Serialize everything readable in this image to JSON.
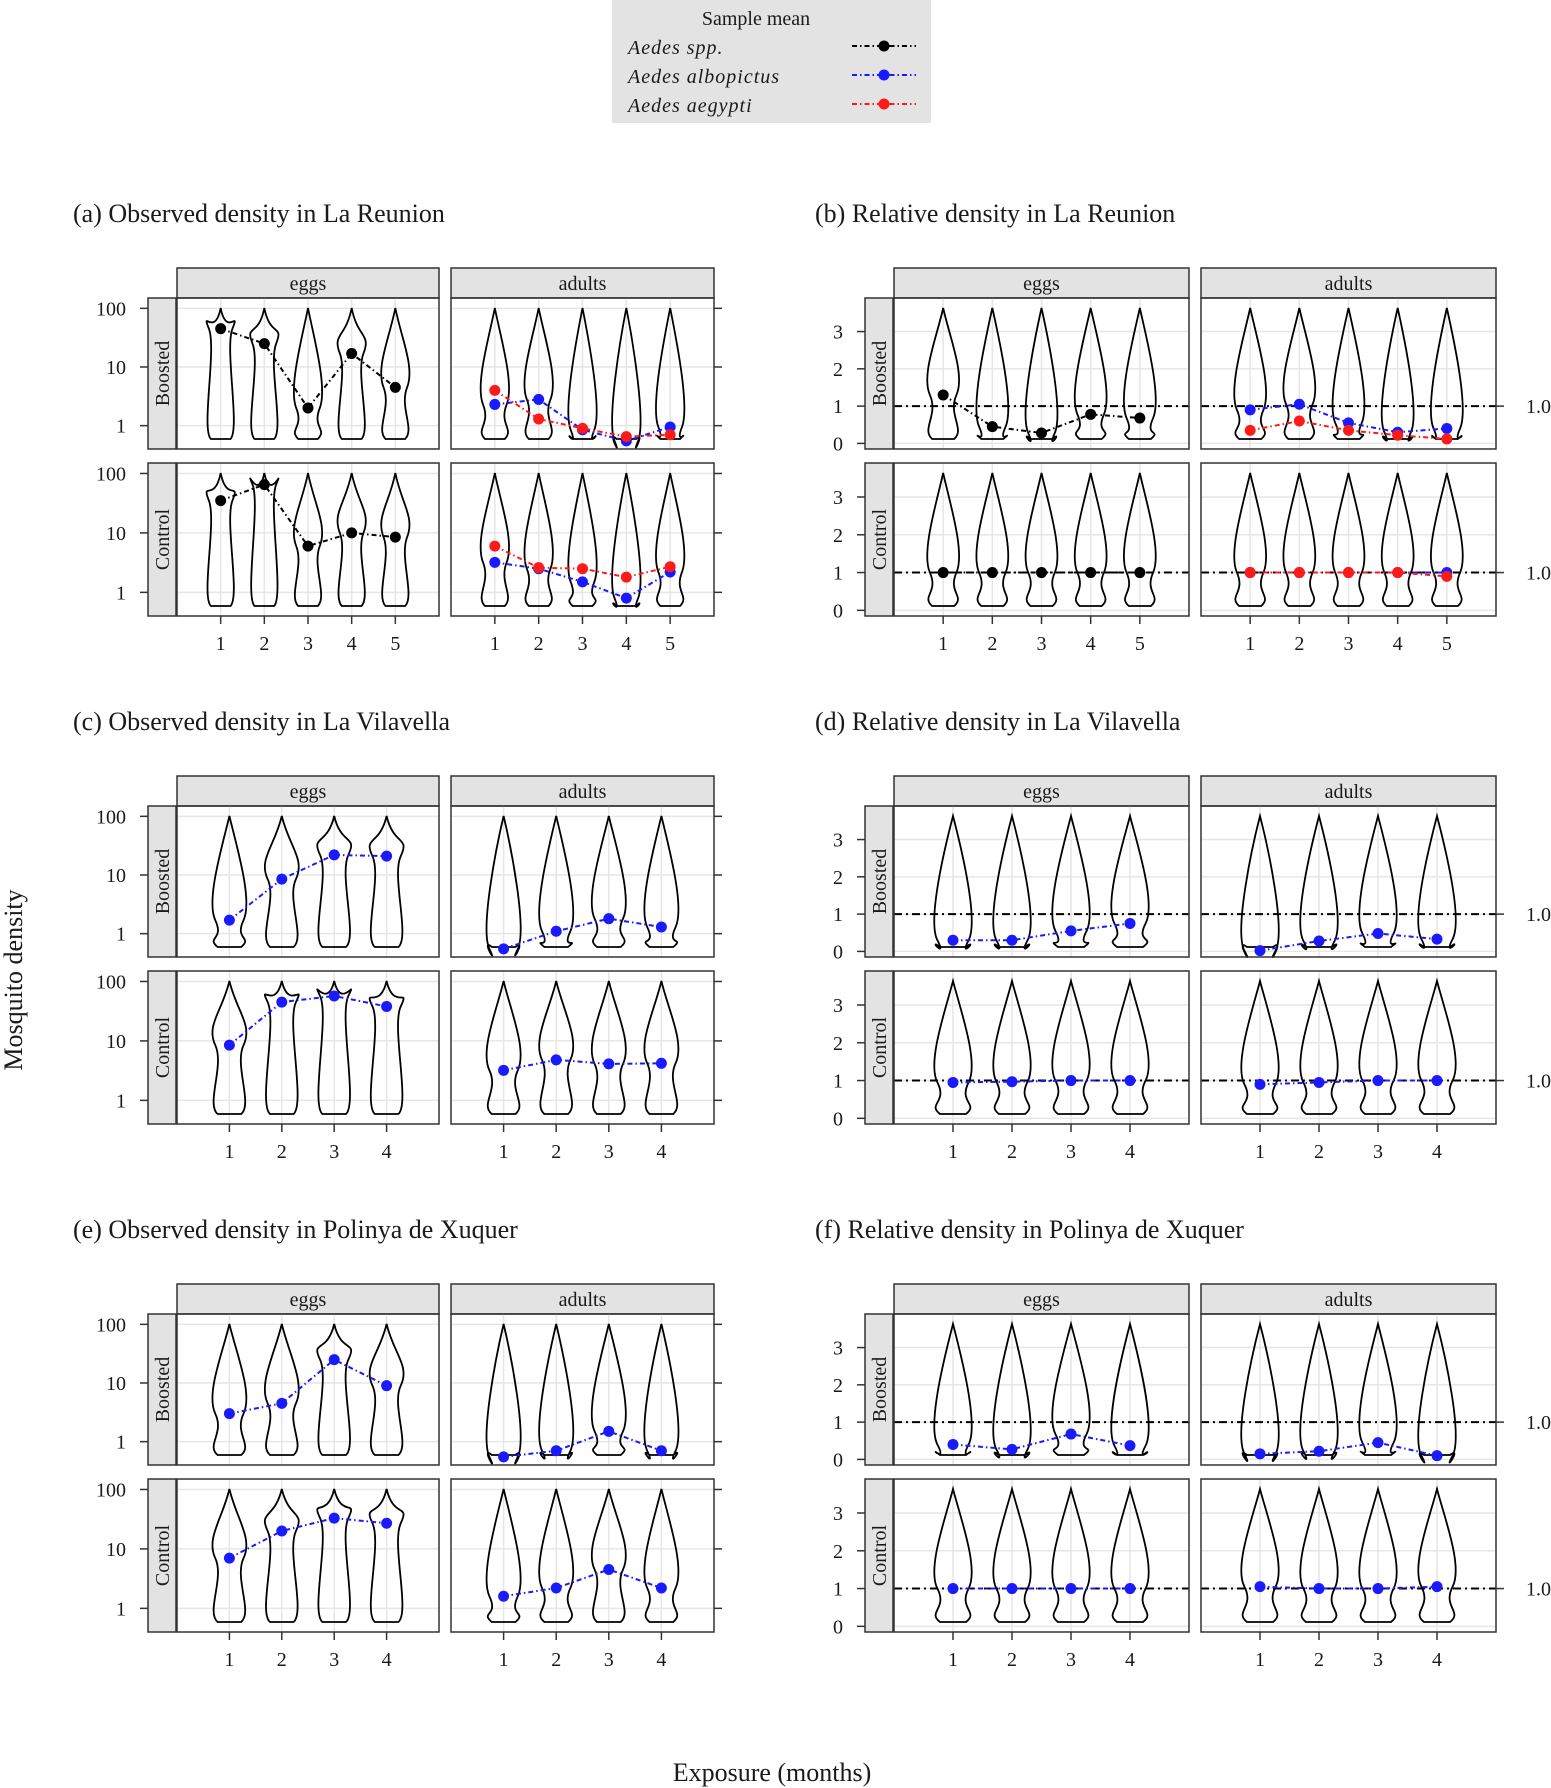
{
  "figure": {
    "y_axis_title": "Mosquito density",
    "x_axis_title": "Exposure (months)"
  },
  "legend": {
    "title": "Sample mean",
    "entries": [
      {
        "label": "Aedes spp.",
        "color": "#000000",
        "dash": "dot-dash"
      },
      {
        "label": "Aedes albopictus",
        "color": "#0000ff",
        "dash": "dot-dash"
      },
      {
        "label": "Aedes aegypti",
        "color": "#ff0000",
        "dash": "dot-dash"
      }
    ]
  },
  "colors": {
    "spp": "#000000",
    "albo": "#1a1aff",
    "aeg": "#ff1a1a",
    "strip_bg": "#e3e3e3",
    "grid": "#e6e6e6"
  },
  "chart_data": [
    {
      "id": "a",
      "title": "(a) Observed density in La Reunion",
      "type": "violin",
      "scale": "log10",
      "yticks": [
        1,
        10,
        100
      ],
      "ytick_labels": [
        "1",
        "10",
        "100"
      ],
      "facets": [
        "eggs",
        "adults"
      ],
      "rows": [
        "Boosted",
        "Control"
      ],
      "xticks": {
        "eggs": [
          1,
          2,
          3,
          4,
          5
        ],
        "adults": [
          1,
          2,
          3,
          4,
          5
        ]
      },
      "means": {
        "Boosted": {
          "eggs": [
            {
              "species": "spp",
              "values": [
                45,
                25,
                2,
                17,
                4.5
              ]
            }
          ],
          "adults": [
            {
              "species": "albo",
              "values": [
                2.3,
                2.8,
                0.85,
                0.55,
                0.95
              ]
            },
            {
              "species": "aeg",
              "values": [
                4,
                1.3,
                0.9,
                0.65,
                0.7
              ]
            }
          ]
        },
        "Control": {
          "eggs": [
            {
              "species": "spp",
              "values": [
                35,
                65,
                6,
                10,
                8.5
              ]
            }
          ],
          "adults": [
            {
              "species": "albo",
              "values": [
                3.2,
                2.5,
                1.5,
                0.8,
                2.2
              ]
            },
            {
              "species": "aeg",
              "values": [
                6,
                2.6,
                2.5,
                1.8,
                2.7
              ]
            }
          ]
        }
      }
    },
    {
      "id": "b",
      "title": "(b) Relative density in La Reunion",
      "type": "violin",
      "scale": "linear",
      "yticks": [
        0,
        1,
        2,
        3
      ],
      "ytick_labels": [
        "0",
        "1",
        "2",
        "3"
      ],
      "reference": 1.0,
      "reference_label": "1.0",
      "facets": [
        "eggs",
        "adults"
      ],
      "rows": [
        "Boosted",
        "Control"
      ],
      "xticks": {
        "eggs": [
          1,
          2,
          3,
          4,
          5
        ],
        "adults": [
          1,
          2,
          3,
          4,
          5
        ]
      },
      "means": {
        "Boosted": {
          "eggs": [
            {
              "species": "spp",
              "values": [
                1.3,
                0.45,
                0.28,
                0.78,
                0.68
              ]
            }
          ],
          "adults": [
            {
              "species": "albo",
              "values": [
                0.9,
                1.05,
                0.55,
                0.3,
                0.4
              ]
            },
            {
              "species": "aeg",
              "values": [
                0.35,
                0.6,
                0.35,
                0.22,
                0.12
              ]
            }
          ]
        },
        "Control": {
          "eggs": [
            {
              "species": "spp",
              "values": [
                1,
                1,
                1,
                1,
                1
              ]
            }
          ],
          "adults": [
            {
              "species": "albo",
              "values": [
                1,
                1,
                1,
                1,
                1
              ]
            },
            {
              "species": "aeg",
              "values": [
                1,
                1,
                1,
                1,
                0.9
              ]
            }
          ]
        }
      }
    },
    {
      "id": "c",
      "title": "(c) Observed density in La Vilavella",
      "type": "violin",
      "scale": "log10",
      "yticks": [
        1,
        10,
        100
      ],
      "ytick_labels": [
        "1",
        "10",
        "100"
      ],
      "facets": [
        "eggs",
        "adults"
      ],
      "rows": [
        "Boosted",
        "Control"
      ],
      "xticks": {
        "eggs": [
          1,
          2,
          3,
          4
        ],
        "adults": [
          1,
          2,
          3,
          4
        ]
      },
      "means": {
        "Boosted": {
          "eggs": [
            {
              "species": "albo",
              "values": [
                1.7,
                8.5,
                22,
                21
              ]
            }
          ],
          "adults": [
            {
              "species": "albo",
              "values": [
                0.55,
                1.1,
                1.8,
                1.3
              ]
            }
          ]
        },
        "Control": {
          "eggs": [
            {
              "species": "albo",
              "values": [
                8.5,
                45,
                57,
                38
              ]
            }
          ],
          "adults": [
            {
              "species": "albo",
              "values": [
                3.2,
                4.8,
                4.1,
                4.2
              ]
            }
          ]
        }
      }
    },
    {
      "id": "d",
      "title": "(d) Relative density in La Vilavella",
      "type": "violin",
      "scale": "linear",
      "yticks": [
        0,
        1,
        2,
        3
      ],
      "ytick_labels": [
        "0",
        "1",
        "2",
        "3"
      ],
      "reference": 1.0,
      "reference_label": "1.0",
      "facets": [
        "eggs",
        "adults"
      ],
      "rows": [
        "Boosted",
        "Control"
      ],
      "xticks": {
        "eggs": [
          1,
          2,
          3,
          4
        ],
        "adults": [
          1,
          2,
          3,
          4
        ]
      },
      "means": {
        "Boosted": {
          "eggs": [
            {
              "species": "albo",
              "values": [
                0.3,
                0.3,
                0.55,
                0.75
              ]
            }
          ],
          "adults": [
            {
              "species": "albo",
              "values": [
                0.02,
                0.28,
                0.48,
                0.33
              ]
            }
          ]
        },
        "Control": {
          "eggs": [
            {
              "species": "albo",
              "values": [
                0.95,
                0.97,
                1,
                1
              ]
            }
          ],
          "adults": [
            {
              "species": "albo",
              "values": [
                0.9,
                0.95,
                1,
                1
              ]
            }
          ]
        }
      }
    },
    {
      "id": "e",
      "title": "(e) Observed density in Polinya de Xuquer",
      "type": "violin",
      "scale": "log10",
      "yticks": [
        1,
        10,
        100
      ],
      "ytick_labels": [
        "1",
        "10",
        "100"
      ],
      "facets": [
        "eggs",
        "adults"
      ],
      "rows": [
        "Boosted",
        "Control"
      ],
      "xticks": {
        "eggs": [
          1,
          2,
          3,
          4
        ],
        "adults": [
          1,
          2,
          3,
          4
        ]
      },
      "means": {
        "Boosted": {
          "eggs": [
            {
              "species": "albo",
              "values": [
                3,
                4.5,
                25,
                9
              ]
            }
          ],
          "adults": [
            {
              "species": "albo",
              "values": [
                0.55,
                0.7,
                1.5,
                0.7
              ]
            }
          ]
        },
        "Control": {
          "eggs": [
            {
              "species": "albo",
              "values": [
                7,
                20,
                33,
                27
              ]
            }
          ],
          "adults": [
            {
              "species": "albo",
              "values": [
                1.6,
                2.2,
                4.5,
                2.2
              ]
            }
          ]
        }
      }
    },
    {
      "id": "f",
      "title": "(f) Relative density in Polinya de Xuquer",
      "type": "violin",
      "scale": "linear",
      "yticks": [
        0,
        1,
        2,
        3
      ],
      "ytick_labels": [
        "0",
        "1",
        "2",
        "3"
      ],
      "reference": 1.0,
      "reference_label": "1.0",
      "facets": [
        "eggs",
        "adults"
      ],
      "rows": [
        "Boosted",
        "Control"
      ],
      "xticks": {
        "eggs": [
          1,
          2,
          3,
          4
        ],
        "adults": [
          1,
          2,
          3,
          4
        ]
      },
      "means": {
        "Boosted": {
          "eggs": [
            {
              "species": "albo",
              "values": [
                0.4,
                0.27,
                0.68,
                0.37
              ]
            }
          ],
          "adults": [
            {
              "species": "albo",
              "values": [
                0.15,
                0.22,
                0.45,
                0.1
              ]
            }
          ]
        },
        "Control": {
          "eggs": [
            {
              "species": "albo",
              "values": [
                1,
                1,
                1,
                1
              ]
            }
          ],
          "adults": [
            {
              "species": "albo",
              "values": [
                1.05,
                1,
                1,
                1.05
              ]
            }
          ]
        }
      }
    }
  ]
}
